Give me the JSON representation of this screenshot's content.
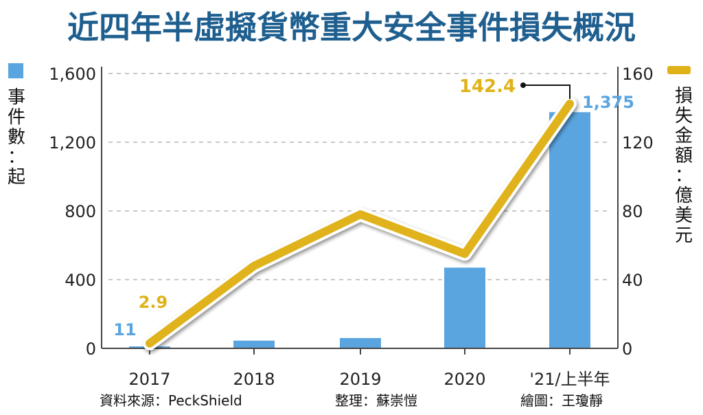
{
  "title": "近四年半虛擬貨幣重大安全事件損失概況",
  "colors": {
    "bar": "#5aa5e0",
    "line": "#e0b21a",
    "bar_label": "#5aa5e0",
    "line_label": "#e0b21a",
    "title": "#1f5f8f"
  },
  "chart_data": {
    "type": "bar+line",
    "categories": [
      "2017",
      "2018",
      "2019",
      "2020",
      "'21/上半年"
    ],
    "series": [
      {
        "name": "事件數",
        "axis": "left",
        "type": "bar",
        "values": [
          11,
          45,
          60,
          470,
          1375
        ]
      },
      {
        "name": "損失金額",
        "axis": "right",
        "type": "line",
        "values": [
          2.9,
          48,
          78,
          55,
          142.4
        ]
      }
    ],
    "data_labels": [
      {
        "series": "事件數",
        "category": "2017",
        "text": "11"
      },
      {
        "series": "損失金額",
        "category": "2017",
        "text": "2.9"
      },
      {
        "series": "損失金額",
        "category": "'21/上半年",
        "text": "142.4"
      },
      {
        "series": "事件數",
        "category": "'21/上半年",
        "text": "1,375"
      }
    ],
    "left_axis": {
      "label_chars": [
        "事",
        "件",
        "數",
        "：",
        "起"
      ],
      "range": [
        0,
        1600
      ],
      "ticks": [
        "0",
        "400",
        "800",
        "1,200",
        "1,600"
      ]
    },
    "right_axis": {
      "label_chars": [
        "損",
        "失",
        "金",
        "額",
        "：",
        "億",
        "美",
        "元"
      ],
      "range": [
        0,
        160
      ],
      "ticks": [
        "0",
        "40",
        "80",
        "120",
        "160"
      ]
    },
    "grid": "horizontal dashed"
  },
  "footer": {
    "source": "資料來源：PeckShield",
    "editor": "整理：蘇崇愷",
    "artist": "繪圖：王瓊靜"
  }
}
